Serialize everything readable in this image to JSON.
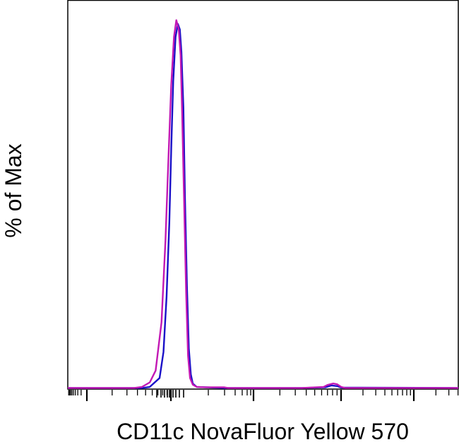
{
  "chart_data": {
    "type": "line",
    "title": "",
    "xlabel": "CD11c NovaFluor Yellow 570",
    "ylabel": "% of Max",
    "x_scale": "biexponential",
    "tick_labels": false,
    "xlim": [
      0,
      1
    ],
    "ylim": [
      0,
      100
    ],
    "legend": "none",
    "grid": false,
    "series": [
      {
        "color": "#1a10c8",
        "points": [
          [
            0.0,
            0.3
          ],
          [
            0.19,
            0.3
          ],
          [
            0.21,
            0.6
          ],
          [
            0.235,
            3
          ],
          [
            0.245,
            10
          ],
          [
            0.253,
            25
          ],
          [
            0.26,
            45
          ],
          [
            0.265,
            65
          ],
          [
            0.27,
            83
          ],
          [
            0.276,
            95
          ],
          [
            0.282,
            98.5
          ],
          [
            0.287,
            97
          ],
          [
            0.291,
            91
          ],
          [
            0.296,
            76
          ],
          [
            0.3,
            52
          ],
          [
            0.305,
            28
          ],
          [
            0.31,
            11
          ],
          [
            0.315,
            4
          ],
          [
            0.32,
            1.5
          ],
          [
            0.33,
            0.6
          ],
          [
            0.4,
            0.3
          ],
          [
            0.6,
            0.3
          ],
          [
            0.66,
            0.5
          ],
          [
            0.675,
            1.0
          ],
          [
            0.69,
            0.8
          ],
          [
            0.7,
            0.4
          ],
          [
            1.0,
            0.3
          ]
        ]
      },
      {
        "color": "#c218b4",
        "points": [
          [
            0.0,
            0.3
          ],
          [
            0.17,
            0.3
          ],
          [
            0.19,
            0.6
          ],
          [
            0.21,
            1.8
          ],
          [
            0.225,
            5
          ],
          [
            0.24,
            18
          ],
          [
            0.25,
            40
          ],
          [
            0.258,
            63
          ],
          [
            0.265,
            82
          ],
          [
            0.272,
            95
          ],
          [
            0.278,
            99.5
          ],
          [
            0.284,
            97
          ],
          [
            0.289,
            90
          ],
          [
            0.293,
            74
          ],
          [
            0.298,
            50
          ],
          [
            0.303,
            26
          ],
          [
            0.308,
            9
          ],
          [
            0.313,
            3
          ],
          [
            0.32,
            1.2
          ],
          [
            0.33,
            0.6
          ],
          [
            0.35,
            0.5
          ],
          [
            0.4,
            0.5
          ],
          [
            0.41,
            0.3
          ],
          [
            0.6,
            0.3
          ],
          [
            0.655,
            0.6
          ],
          [
            0.665,
            1.1
          ],
          [
            0.68,
            1.5
          ],
          [
            0.69,
            1.3
          ],
          [
            0.7,
            0.6
          ],
          [
            0.71,
            0.3
          ],
          [
            1.0,
            0.3
          ]
        ]
      }
    ]
  }
}
